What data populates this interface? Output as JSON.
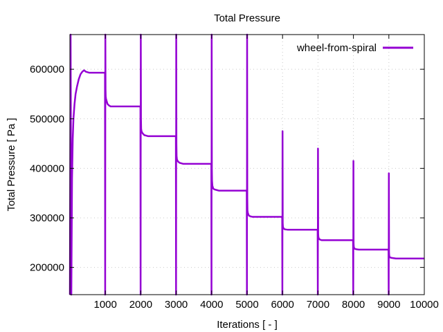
{
  "chart_data": {
    "type": "line",
    "title": "Total Pressure",
    "xlabel": "Iterations [ - ]",
    "ylabel": "Total Pressure [ Pa ]",
    "xlim": [
      0,
      10000
    ],
    "ylim": [
      145000,
      670000
    ],
    "x_ticks": [
      1000,
      2000,
      3000,
      4000,
      5000,
      6000,
      7000,
      8000,
      9000,
      10000
    ],
    "y_ticks": [
      200000,
      300000,
      400000,
      500000,
      600000
    ],
    "grid": true,
    "legend_position": "top-right",
    "series": [
      {
        "name": "wheel-from-spiral",
        "color": "#9400d3",
        "x": [
          0,
          20,
          40,
          60,
          80,
          100,
          130,
          160,
          200,
          250,
          300,
          350,
          400,
          450,
          500,
          550,
          600,
          700,
          800,
          900,
          990,
          995,
          1000,
          1005,
          1010,
          1020,
          1040,
          1060,
          1100,
          1150,
          1200,
          1300,
          1500,
          1700,
          1900,
          1990,
          1995,
          2000,
          2005,
          2010,
          2020,
          2040,
          2060,
          2100,
          2150,
          2200,
          2300,
          2500,
          2700,
          2900,
          2990,
          2995,
          3000,
          3005,
          3010,
          3020,
          3040,
          3060,
          3100,
          3150,
          3200,
          3300,
          3500,
          3700,
          3900,
          3990,
          3995,
          4000,
          4005,
          4010,
          4020,
          4040,
          4060,
          4100,
          4150,
          4200,
          4300,
          4500,
          4700,
          4900,
          4990,
          4995,
          5000,
          5005,
          5010,
          5020,
          5040,
          5060,
          5100,
          5150,
          5200,
          5300,
          5500,
          5700,
          5900,
          5990,
          5995,
          6000,
          6005,
          6010,
          6020,
          6040,
          6060,
          6100,
          6150,
          6200,
          6300,
          6500,
          6700,
          6900,
          6990,
          6995,
          7000,
          7005,
          7010,
          7020,
          7040,
          7060,
          7100,
          7150,
          7200,
          7300,
          7500,
          7700,
          7900,
          7990,
          7995,
          8000,
          8005,
          8010,
          8020,
          8040,
          8060,
          8100,
          8150,
          8200,
          8300,
          8500,
          8700,
          8900,
          8990,
          8995,
          9000,
          9005,
          9010,
          9020,
          9040,
          9060,
          9100,
          9150,
          9200,
          9300,
          9500,
          9700,
          9900,
          10000
        ],
        "y": [
          145000,
          670000,
          145000,
          380000,
          460000,
          500000,
          530000,
          550000,
          565000,
          580000,
          590000,
          595000,
          598000,
          595000,
          594000,
          593000,
          593000,
          593000,
          593000,
          593000,
          593000,
          145000,
          670000,
          560000,
          545000,
          540000,
          535000,
          530000,
          527000,
          525000,
          525000,
          525000,
          525000,
          525000,
          525000,
          525000,
          145000,
          670000,
          500000,
          480000,
          475000,
          472000,
          470000,
          467000,
          466000,
          465000,
          465000,
          465000,
          465000,
          465000,
          465000,
          145000,
          670000,
          450000,
          425000,
          418000,
          415000,
          413000,
          411000,
          410000,
          409000,
          409000,
          409000,
          409000,
          409000,
          409000,
          145000,
          670000,
          400000,
          375000,
          365000,
          360000,
          358000,
          357000,
          356000,
          355000,
          355000,
          355000,
          355000,
          355000,
          355000,
          145000,
          670000,
          340000,
          315000,
          310000,
          306000,
          304000,
          303000,
          302000,
          302000,
          302000,
          302000,
          302000,
          302000,
          302000,
          145000,
          475000,
          290000,
          283000,
          280000,
          278000,
          277000,
          276500,
          276000,
          276000,
          276000,
          276000,
          276000,
          276000,
          276000,
          145000,
          440000,
          268000,
          262000,
          259000,
          257000,
          256000,
          255000,
          255000,
          255000,
          255000,
          255000,
          255000,
          255000,
          255000,
          145000,
          415000,
          248000,
          242000,
          239000,
          237500,
          237000,
          236500,
          236000,
          236000,
          236000,
          236000,
          236000,
          236000,
          236000,
          145000,
          390000,
          230000,
          224000,
          221000,
          220000,
          219500,
          219000,
          218500,
          218000,
          218000,
          218000,
          218000,
          218000,
          218000
        ]
      }
    ]
  }
}
